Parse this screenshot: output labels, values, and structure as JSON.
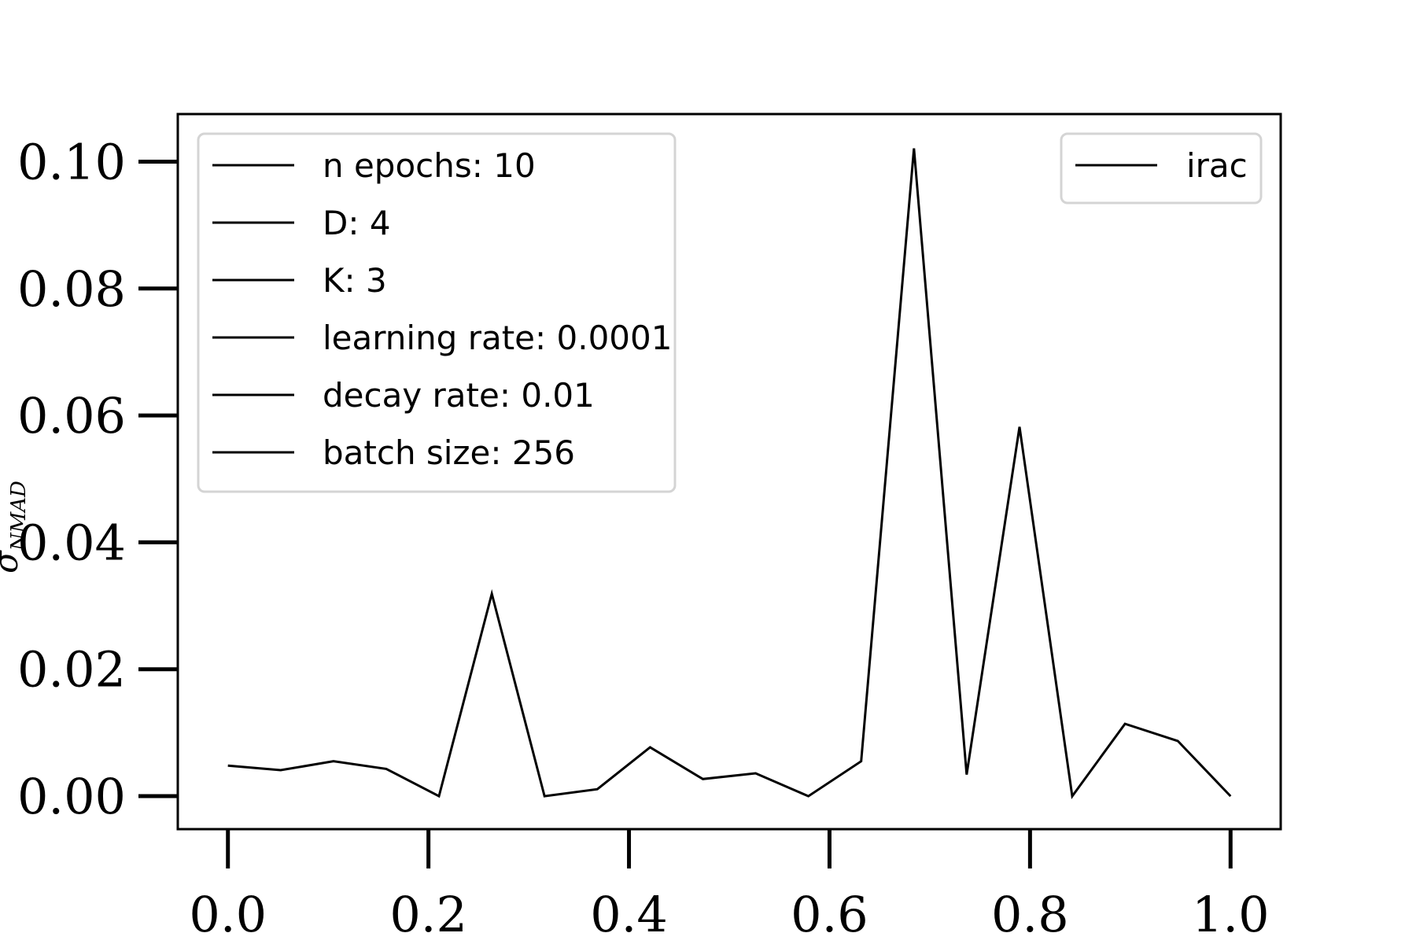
{
  "chart_data": {
    "type": "line",
    "title": "",
    "ylabel": "σ",
    "ylabel_subscript": "NMAD",
    "xlim": [
      -0.05,
      1.05
    ],
    "ylim": [
      -0.0052,
      0.1075
    ],
    "grid": false,
    "x_ticks": [
      "0.0",
      "0.2",
      "0.4",
      "0.6",
      "0.8",
      "1.0"
    ],
    "x_tick_values": [
      0.0,
      0.2,
      0.4,
      0.6,
      0.8,
      1.0
    ],
    "y_ticks": [
      "0.00",
      "0.02",
      "0.04",
      "0.06",
      "0.08",
      "0.10"
    ],
    "y_tick_values": [
      0.0,
      0.02,
      0.04,
      0.06,
      0.08,
      0.1
    ],
    "series": [
      {
        "name": "irac",
        "color": "#000000",
        "x": [
          0.0,
          0.0526,
          0.1053,
          0.1579,
          0.2105,
          0.2632,
          0.3158,
          0.3684,
          0.4211,
          0.4737,
          0.5263,
          0.5789,
          0.6316,
          0.6842,
          0.7368,
          0.7895,
          0.8421,
          0.8947,
          0.9474,
          1.0
        ],
        "values": [
          0.0048,
          0.0041,
          0.0055,
          0.0043,
          0.0,
          0.0319,
          0.0,
          0.0011,
          0.0077,
          0.0027,
          0.0036,
          0.0,
          0.0055,
          0.1021,
          0.0034,
          0.0582,
          0.0,
          0.0114,
          0.0087,
          0.0
        ]
      }
    ],
    "legend_params": {
      "placement": "top-left",
      "entries": [
        "n epochs: 10",
        "D: 4",
        "K: 3",
        "learning rate: 0.0001",
        "decay rate: 0.01",
        "batch size: 256"
      ]
    },
    "legend_series": {
      "placement": "top-right",
      "entries": [
        "irac"
      ]
    }
  }
}
